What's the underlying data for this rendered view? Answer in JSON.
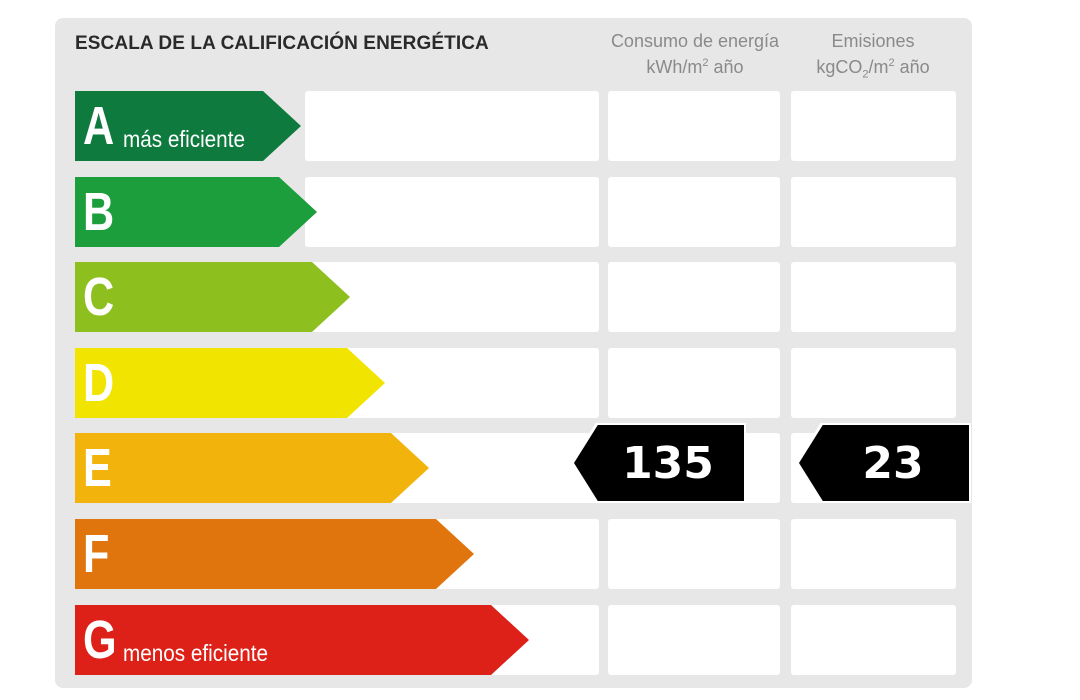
{
  "header": {
    "title": "ESCALA DE LA CALIFICACIÓN ENERGÉTICA",
    "consumo": {
      "line1": "Consumo de energía",
      "unit_pre": "kWh/m",
      "unit_sup": "2",
      "unit_post": " año"
    },
    "emisiones": {
      "line1": "Emisiones",
      "unit_pre": "kgCO",
      "unit_sub": "2",
      "unit_mid": "/m",
      "unit_sup": "2",
      "unit_post": " año"
    }
  },
  "grades": [
    {
      "letter": "A",
      "desc": "más eficiente",
      "color": "#0e7a3e"
    },
    {
      "letter": "B",
      "desc": "",
      "color": "#1c9e3d"
    },
    {
      "letter": "C",
      "desc": "",
      "color": "#8dbf1f"
    },
    {
      "letter": "D",
      "desc": "",
      "color": "#f1e400"
    },
    {
      "letter": "E",
      "desc": "",
      "color": "#f2b40c"
    },
    {
      "letter": "F",
      "desc": "",
      "color": "#e0740d"
    },
    {
      "letter": "G",
      "desc": "menos eficiente",
      "color": "#dd2118"
    }
  ],
  "rating": {
    "grade": "E",
    "consumo_value": "135",
    "emisiones_value": "23"
  }
}
